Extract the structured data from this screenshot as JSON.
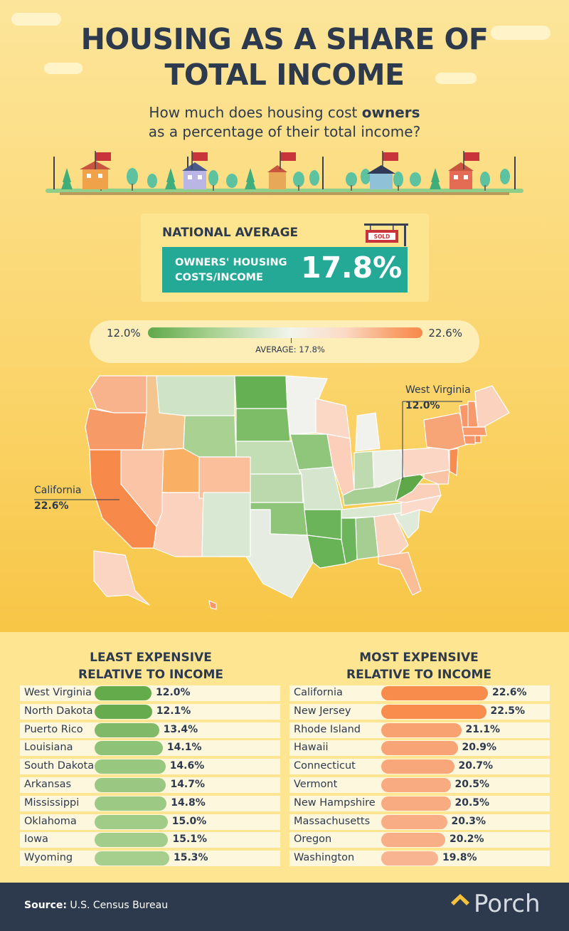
{
  "title": "HOUSING AS A SHARE OF TOTAL INCOME",
  "title_line1": "HOUSING AS A SHARE OF",
  "title_line2": "TOTAL INCOME",
  "subtitle_line1_pre": "How much does housing cost ",
  "subtitle_bold": "owners",
  "subtitle_line2": "as a percentage of their total income?",
  "sign_text": "SOLD",
  "national_average": {
    "label": "NATIONAL AVERAGE",
    "metric_line1": "OWNERS' HOUSING",
    "metric_line2": "COSTS/INCOME",
    "value": "17.8%"
  },
  "legend": {
    "min": "12.0%",
    "max": "22.6%",
    "average_label": "AVERAGE: 17.8%"
  },
  "map_callouts": {
    "west_virginia": {
      "name": "West Virginia",
      "value": "12.0%"
    },
    "california": {
      "name": "California",
      "value": "22.6%"
    }
  },
  "colors": {
    "low": "#5fa84a",
    "mid": "#f2f5ee",
    "high": "#f7894a",
    "teal": "#23a996",
    "navy": "#2d3a4e"
  },
  "chart_data": [
    {
      "type": "bar",
      "title": "LEAST EXPENSIVE RELATIVE TO INCOME",
      "title_line1": "LEAST EXPENSIVE",
      "title_line2": "RELATIVE TO INCOME",
      "categories": [
        "West Virginia",
        "North Dakota",
        "Puerto Rico",
        "Louisiana",
        "South Dakota",
        "Arkansas",
        "Mississippi",
        "Oklahoma",
        "Iowa",
        "Wyoming"
      ],
      "values": [
        12.0,
        12.1,
        13.4,
        14.1,
        14.6,
        14.7,
        14.8,
        15.0,
        15.1,
        15.3
      ],
      "labels": [
        "12.0%",
        "12.1%",
        "13.4%",
        "14.1%",
        "14.6%",
        "14.7%",
        "14.8%",
        "15.0%",
        "15.1%",
        "15.3%"
      ],
      "unit": "%"
    },
    {
      "type": "bar",
      "title": "MOST EXPENSIVE RELATIVE TO INCOME",
      "title_line1": "MOST EXPENSIVE",
      "title_line2": "RELATIVE TO INCOME",
      "categories": [
        "California",
        "New Jersey",
        "Rhode Island",
        "Hawaii",
        "Connecticut",
        "Vermont",
        "New Hampshire",
        "Massachusetts",
        "Oregon",
        "Washington"
      ],
      "values": [
        22.6,
        22.5,
        21.1,
        20.9,
        20.7,
        20.5,
        20.5,
        20.3,
        20.2,
        19.8
      ],
      "labels": [
        "22.6%",
        "22.5%",
        "21.1%",
        "20.9%",
        "20.7%",
        "20.5%",
        "20.5%",
        "20.3%",
        "20.2%",
        "19.8%"
      ],
      "unit": "%"
    }
  ],
  "footer": {
    "source_label": "Source:",
    "source_text": " U.S. Census Bureau",
    "brand": "Porch"
  }
}
